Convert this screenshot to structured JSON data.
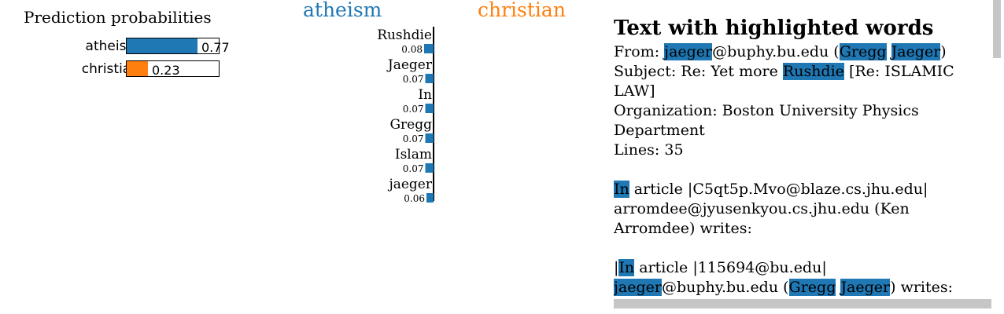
{
  "prediction": {
    "title": "Prediction probabilities",
    "rows": [
      {
        "label": "atheism",
        "value_text": "0.77",
        "value": 0.77,
        "color": "#1f77b4"
      },
      {
        "label": "christian",
        "value_text": "0.23",
        "value": 0.23,
        "color": "#ff7f0e"
      }
    ]
  },
  "class_headers": {
    "negative": {
      "label": "atheism",
      "color": "#1f77b4"
    },
    "positive": {
      "label": "christian",
      "color": "#ff7f0e"
    }
  },
  "chart_data": {
    "type": "bar",
    "orientation": "horizontal",
    "categories": [
      "Rushdie",
      "Jaeger",
      "In",
      "Gregg",
      "Islam",
      "jaeger"
    ],
    "values": [
      0.08,
      0.07,
      0.07,
      0.07,
      0.07,
      0.06
    ],
    "value_labels": [
      "0.08",
      "0.07",
      "0.07",
      "0.07",
      "0.07",
      "0.06"
    ],
    "direction": "atheism",
    "color": "#1f77b4"
  },
  "text_panel": {
    "title": "Text with highlighted words",
    "highlight_color": "#1f77b4",
    "lines": [
      [
        {
          "t": "From: "
        },
        {
          "t": "jaeger",
          "hl": true
        },
        {
          "t": "@buphy.bu.edu ("
        },
        {
          "t": "Gregg",
          "hl": true
        },
        {
          "t": " "
        },
        {
          "t": "Jaeger",
          "hl": true
        },
        {
          "t": ")"
        }
      ],
      [
        {
          "t": "Subject: Re: Yet more "
        },
        {
          "t": "Rushdie",
          "hl": true
        },
        {
          "t": " [Re: ISLAMIC"
        }
      ],
      [
        {
          "t": "LAW]"
        }
      ],
      [
        {
          "t": "Organization: Boston University Physics"
        }
      ],
      [
        {
          "t": "Department"
        }
      ],
      [
        {
          "t": "Lines: 35"
        }
      ],
      [
        {
          "t": ""
        }
      ],
      [
        {
          "t": "In",
          "hl": true
        },
        {
          "t": " article |C5qt5p.Mvo@blaze.cs.jhu.edu|"
        }
      ],
      [
        {
          "t": "arromdee@jyusenkyou.cs.jhu.edu (Ken"
        }
      ],
      [
        {
          "t": "Arromdee) writes:"
        }
      ],
      [
        {
          "t": ""
        }
      ],
      [
        {
          "t": "|"
        },
        {
          "t": "In",
          "hl": true
        },
        {
          "t": " article |115694@bu.edu|"
        }
      ],
      [
        {
          "t": "jaeger",
          "hl": true
        },
        {
          "t": "@buphy.bu.edu ("
        },
        {
          "t": "Gregg",
          "hl": true
        },
        {
          "t": " "
        },
        {
          "t": "Jaeger",
          "hl": true
        },
        {
          "t": ") writes:"
        }
      ]
    ]
  }
}
